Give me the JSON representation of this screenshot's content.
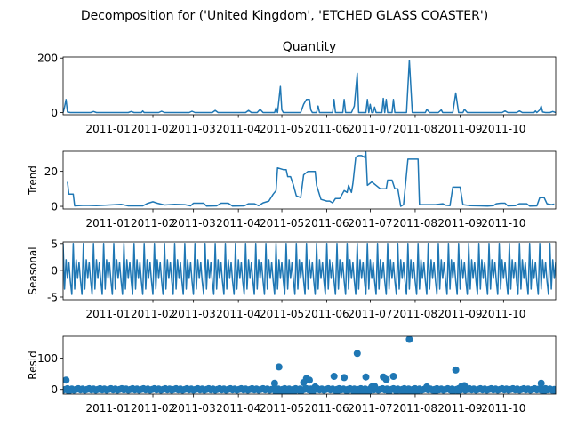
{
  "figure": {
    "suptitle": "Decomposition for ('United Kingdom', 'ETCHED GLASS COASTER')",
    "series_color": "#1f77b4"
  },
  "chart_data": [
    {
      "type": "line",
      "title": "Quantity",
      "ylabel": "",
      "x_range": [
        "2010-12-01",
        "2011-11-06"
      ],
      "ylim": [
        -8,
        204
      ],
      "yticks": [
        0,
        200
      ],
      "xticks": [
        "2011-01",
        "2011-02",
        "2011-03",
        "2011-04",
        "2011-05",
        "2011-06",
        "2011-07",
        "2011-08",
        "2011-09",
        "2011-10"
      ],
      "points": [
        [
          "2010-12-01",
          0
        ],
        [
          "2010-12-02",
          20
        ],
        [
          "2010-12-03",
          48
        ],
        [
          "2010-12-04",
          2
        ],
        [
          "2010-12-06",
          0
        ],
        [
          "2010-12-20",
          0
        ],
        [
          "2010-12-22",
          4
        ],
        [
          "2010-12-24",
          0
        ],
        [
          "2011-01-15",
          0
        ],
        [
          "2011-01-17",
          4
        ],
        [
          "2011-01-19",
          0
        ],
        [
          "2011-01-24",
          0
        ],
        [
          "2011-01-25",
          6
        ],
        [
          "2011-01-26",
          0
        ],
        [
          "2011-02-05",
          0
        ],
        [
          "2011-02-07",
          5
        ],
        [
          "2011-02-09",
          0
        ],
        [
          "2011-02-26",
          0
        ],
        [
          "2011-02-28",
          5
        ],
        [
          "2011-03-02",
          0
        ],
        [
          "2011-03-14",
          0
        ],
        [
          "2011-03-16",
          8
        ],
        [
          "2011-03-18",
          0
        ],
        [
          "2011-04-06",
          0
        ],
        [
          "2011-04-08",
          8
        ],
        [
          "2011-04-10",
          0
        ],
        [
          "2011-04-14",
          0
        ],
        [
          "2011-04-16",
          12
        ],
        [
          "2011-04-18",
          0
        ],
        [
          "2011-04-26",
          0
        ],
        [
          "2011-04-27",
          18
        ],
        [
          "2011-04-28",
          0
        ],
        [
          "2011-04-29",
          48
        ],
        [
          "2011-04-30",
          96
        ],
        [
          "2011-05-01",
          10
        ],
        [
          "2011-05-02",
          0
        ],
        [
          "2011-05-14",
          0
        ],
        [
          "2011-05-16",
          30
        ],
        [
          "2011-05-18",
          48
        ],
        [
          "2011-05-20",
          48
        ],
        [
          "2011-05-21",
          10
        ],
        [
          "2011-05-22",
          0
        ],
        [
          "2011-05-25",
          0
        ],
        [
          "2011-05-26",
          24
        ],
        [
          "2011-05-27",
          0
        ],
        [
          "2011-06-05",
          0
        ],
        [
          "2011-06-06",
          48
        ],
        [
          "2011-06-07",
          0
        ],
        [
          "2011-06-12",
          0
        ],
        [
          "2011-06-13",
          48
        ],
        [
          "2011-06-14",
          0
        ],
        [
          "2011-06-18",
          0
        ],
        [
          "2011-06-20",
          24
        ],
        [
          "2011-06-22",
          144
        ],
        [
          "2011-06-23",
          0
        ],
        [
          "2011-06-28",
          0
        ],
        [
          "2011-06-29",
          48
        ],
        [
          "2011-06-30",
          0
        ],
        [
          "2011-07-01",
          30
        ],
        [
          "2011-07-02",
          0
        ],
        [
          "2011-07-03",
          0
        ],
        [
          "2011-07-04",
          20
        ],
        [
          "2011-07-05",
          0
        ],
        [
          "2011-07-09",
          0
        ],
        [
          "2011-07-10",
          52
        ],
        [
          "2011-07-11",
          0
        ],
        [
          "2011-07-12",
          48
        ],
        [
          "2011-07-13",
          0
        ],
        [
          "2011-07-16",
          0
        ],
        [
          "2011-07-17",
          48
        ],
        [
          "2011-07-18",
          0
        ],
        [
          "2011-07-26",
          0
        ],
        [
          "2011-07-28",
          192
        ],
        [
          "2011-07-30",
          0
        ],
        [
          "2011-08-08",
          0
        ],
        [
          "2011-08-09",
          12
        ],
        [
          "2011-08-11",
          0
        ],
        [
          "2011-08-17",
          0
        ],
        [
          "2011-08-19",
          10
        ],
        [
          "2011-08-20",
          0
        ],
        [
          "2011-08-27",
          0
        ],
        [
          "2011-08-29",
          72
        ],
        [
          "2011-08-31",
          0
        ],
        [
          "2011-09-03",
          0
        ],
        [
          "2011-09-04",
          12
        ],
        [
          "2011-09-06",
          0
        ],
        [
          "2011-09-30",
          0
        ],
        [
          "2011-10-02",
          6
        ],
        [
          "2011-10-04",
          0
        ],
        [
          "2011-10-10",
          0
        ],
        [
          "2011-10-12",
          6
        ],
        [
          "2011-10-14",
          0
        ],
        [
          "2011-10-22",
          0
        ],
        [
          "2011-10-23",
          6
        ],
        [
          "2011-10-24",
          0
        ],
        [
          "2011-10-26",
          10
        ],
        [
          "2011-10-27",
          24
        ],
        [
          "2011-10-28",
          2
        ],
        [
          "2011-10-30",
          0
        ],
        [
          "2011-11-02",
          0
        ],
        [
          "2011-11-04",
          4
        ],
        [
          "2011-11-06",
          0
        ]
      ]
    },
    {
      "type": "line",
      "title": "",
      "ylabel": "Trend",
      "x_range": [
        "2010-12-01",
        "2011-11-06"
      ],
      "ylim": [
        -1.5,
        31.5
      ],
      "yticks": [
        0,
        20
      ],
      "xticks": [
        "2011-01",
        "2011-02",
        "2011-03",
        "2011-04",
        "2011-05",
        "2011-06",
        "2011-07",
        "2011-08",
        "2011-09",
        "2011-10"
      ],
      "points": [
        [
          "2010-12-04",
          14
        ],
        [
          "2010-12-05",
          7
        ],
        [
          "2010-12-08",
          7
        ],
        [
          "2010-12-09",
          0.3
        ],
        [
          "2010-12-16",
          0.6
        ],
        [
          "2010-12-24",
          0.4
        ],
        [
          "2011-01-05",
          0.9
        ],
        [
          "2011-01-10",
          1.2
        ],
        [
          "2011-01-15",
          0.3
        ],
        [
          "2011-01-25",
          0.3
        ],
        [
          "2011-01-28",
          1.6
        ],
        [
          "2011-02-01",
          2.6
        ],
        [
          "2011-02-04",
          1.8
        ],
        [
          "2011-02-09",
          0.8
        ],
        [
          "2011-02-16",
          1.2
        ],
        [
          "2011-02-23",
          1.0
        ],
        [
          "2011-02-27",
          0.3
        ],
        [
          "2011-03-01",
          1.8
        ],
        [
          "2011-03-08",
          1.8
        ],
        [
          "2011-03-10",
          0.2
        ],
        [
          "2011-03-17",
          0.3
        ],
        [
          "2011-03-20",
          1.8
        ],
        [
          "2011-03-25",
          1.8
        ],
        [
          "2011-03-28",
          0.2
        ],
        [
          "2011-04-05",
          0.3
        ],
        [
          "2011-04-08",
          1.5
        ],
        [
          "2011-04-12",
          1.5
        ],
        [
          "2011-04-15",
          0.4
        ],
        [
          "2011-04-18",
          2
        ],
        [
          "2011-04-22",
          3
        ],
        [
          "2011-04-25",
          7
        ],
        [
          "2011-04-27",
          9
        ],
        [
          "2011-04-28",
          22
        ],
        [
          "2011-05-02",
          21
        ],
        [
          "2011-05-04",
          21
        ],
        [
          "2011-05-05",
          17
        ],
        [
          "2011-05-07",
          17
        ],
        [
          "2011-05-09",
          12
        ],
        [
          "2011-05-11",
          6
        ],
        [
          "2011-05-14",
          5
        ],
        [
          "2011-05-16",
          18
        ],
        [
          "2011-05-19",
          20
        ],
        [
          "2011-05-24",
          20
        ],
        [
          "2011-05-25",
          12
        ],
        [
          "2011-05-28",
          4
        ],
        [
          "2011-06-01",
          3
        ],
        [
          "2011-06-03",
          3
        ],
        [
          "2011-06-05",
          2
        ],
        [
          "2011-06-07",
          4.5
        ],
        [
          "2011-06-10",
          4.5
        ],
        [
          "2011-06-13",
          9
        ],
        [
          "2011-06-15",
          8
        ],
        [
          "2011-06-16",
          12
        ],
        [
          "2011-06-18",
          8
        ],
        [
          "2011-06-19",
          13
        ],
        [
          "2011-06-21",
          28
        ],
        [
          "2011-06-23",
          29
        ],
        [
          "2011-06-25",
          29
        ],
        [
          "2011-06-27",
          28
        ],
        [
          "2011-06-28",
          31
        ],
        [
          "2011-06-29",
          12
        ],
        [
          "2011-07-02",
          14
        ],
        [
          "2011-07-05",
          12
        ],
        [
          "2011-07-08",
          10
        ],
        [
          "2011-07-12",
          10
        ],
        [
          "2011-07-13",
          15
        ],
        [
          "2011-07-16",
          15
        ],
        [
          "2011-07-18",
          10
        ],
        [
          "2011-07-20",
          10
        ],
        [
          "2011-07-22",
          0
        ],
        [
          "2011-07-24",
          1
        ],
        [
          "2011-07-27",
          27
        ],
        [
          "2011-08-03",
          27
        ],
        [
          "2011-08-04",
          1
        ],
        [
          "2011-08-10",
          1
        ],
        [
          "2011-08-15",
          1
        ],
        [
          "2011-08-20",
          1.5
        ],
        [
          "2011-08-22",
          0.7
        ],
        [
          "2011-08-25",
          0.4
        ],
        [
          "2011-08-27",
          11
        ],
        [
          "2011-09-01",
          11
        ],
        [
          "2011-09-03",
          1
        ],
        [
          "2011-09-08",
          0.4
        ],
        [
          "2011-09-15",
          0.3
        ],
        [
          "2011-09-20",
          0.2
        ],
        [
          "2011-09-24",
          0.4
        ],
        [
          "2011-09-26",
          1.5
        ],
        [
          "2011-09-29",
          1.8
        ],
        [
          "2011-10-02",
          1.8
        ],
        [
          "2011-10-04",
          0.3
        ],
        [
          "2011-10-09",
          0.4
        ],
        [
          "2011-10-12",
          1.5
        ],
        [
          "2011-10-17",
          1.5
        ],
        [
          "2011-10-19",
          0.2
        ],
        [
          "2011-10-24",
          0.3
        ],
        [
          "2011-10-26",
          5
        ],
        [
          "2011-10-29",
          5
        ],
        [
          "2011-10-31",
          1.5
        ],
        [
          "2011-11-03",
          1
        ],
        [
          "2011-11-05",
          1.3
        ]
      ]
    },
    {
      "type": "line",
      "title": "",
      "ylabel": "Seasonal",
      "x_range": [
        "2010-12-01",
        "2011-11-06"
      ],
      "ylim": [
        -5.5,
        5.3
      ],
      "yticks": [
        -5,
        0,
        5
      ],
      "xticks": [
        "2011-01",
        "2011-02",
        "2011-03",
        "2011-04",
        "2011-05",
        "2011-06",
        "2011-07",
        "2011-08",
        "2011-09",
        "2011-10"
      ],
      "period_days": 7,
      "start": "2010-12-01",
      "end": "2011-11-06",
      "weekly_pattern": [
        5,
        -3.5,
        2,
        -1.5,
        1.5,
        -2,
        -4.5
      ]
    },
    {
      "type": "scatter",
      "title": "",
      "ylabel": "Resid",
      "x_range": [
        "2010-12-01",
        "2011-11-06"
      ],
      "ylim": [
        -15,
        170
      ],
      "yticks": [
        0,
        100
      ],
      "xticks": [
        "2011-01",
        "2011-02",
        "2011-03",
        "2011-04",
        "2011-05",
        "2011-06",
        "2011-07",
        "2011-08",
        "2011-09",
        "2011-10"
      ],
      "baseline": {
        "start": "2010-12-01",
        "end": "2011-11-06",
        "step_days": 1.5,
        "value": 0
      },
      "points": [
        [
          "2010-12-03",
          30
        ],
        [
          "2010-12-05",
          -6
        ],
        [
          "2011-04-26",
          20
        ],
        [
          "2011-04-27",
          -8
        ],
        [
          "2011-04-29",
          72
        ],
        [
          "2011-05-01",
          -10
        ],
        [
          "2011-05-03",
          -12
        ],
        [
          "2011-05-06",
          -11
        ],
        [
          "2011-05-09",
          -10
        ],
        [
          "2011-05-14",
          -8
        ],
        [
          "2011-05-16",
          22
        ],
        [
          "2011-05-18",
          35
        ],
        [
          "2011-05-20",
          30
        ],
        [
          "2011-05-22",
          -12
        ],
        [
          "2011-05-24",
          8
        ],
        [
          "2011-06-06",
          42
        ],
        [
          "2011-06-08",
          -8
        ],
        [
          "2011-06-13",
          38
        ],
        [
          "2011-06-15",
          -6
        ],
        [
          "2011-06-20",
          -10
        ],
        [
          "2011-06-22",
          115
        ],
        [
          "2011-06-24",
          -12
        ],
        [
          "2011-06-26",
          -10
        ],
        [
          "2011-06-28",
          40
        ],
        [
          "2011-06-30",
          -8
        ],
        [
          "2011-07-02",
          8
        ],
        [
          "2011-07-04",
          10
        ],
        [
          "2011-07-10",
          40
        ],
        [
          "2011-07-12",
          32
        ],
        [
          "2011-07-14",
          -8
        ],
        [
          "2011-07-17",
          42
        ],
        [
          "2011-07-19",
          -6
        ],
        [
          "2011-07-24",
          -10
        ],
        [
          "2011-07-27",
          -12
        ],
        [
          "2011-07-28",
          160
        ],
        [
          "2011-07-30",
          -10
        ],
        [
          "2011-08-02",
          -12
        ],
        [
          "2011-08-09",
          8
        ],
        [
          "2011-08-15",
          -6
        ],
        [
          "2011-08-27",
          -8
        ],
        [
          "2011-08-29",
          62
        ],
        [
          "2011-08-31",
          -6
        ],
        [
          "2011-09-02",
          10
        ],
        [
          "2011-09-04",
          12
        ],
        [
          "2011-10-27",
          20
        ],
        [
          "2011-10-29",
          -5
        ],
        [
          "2011-11-05",
          -4
        ]
      ]
    }
  ]
}
